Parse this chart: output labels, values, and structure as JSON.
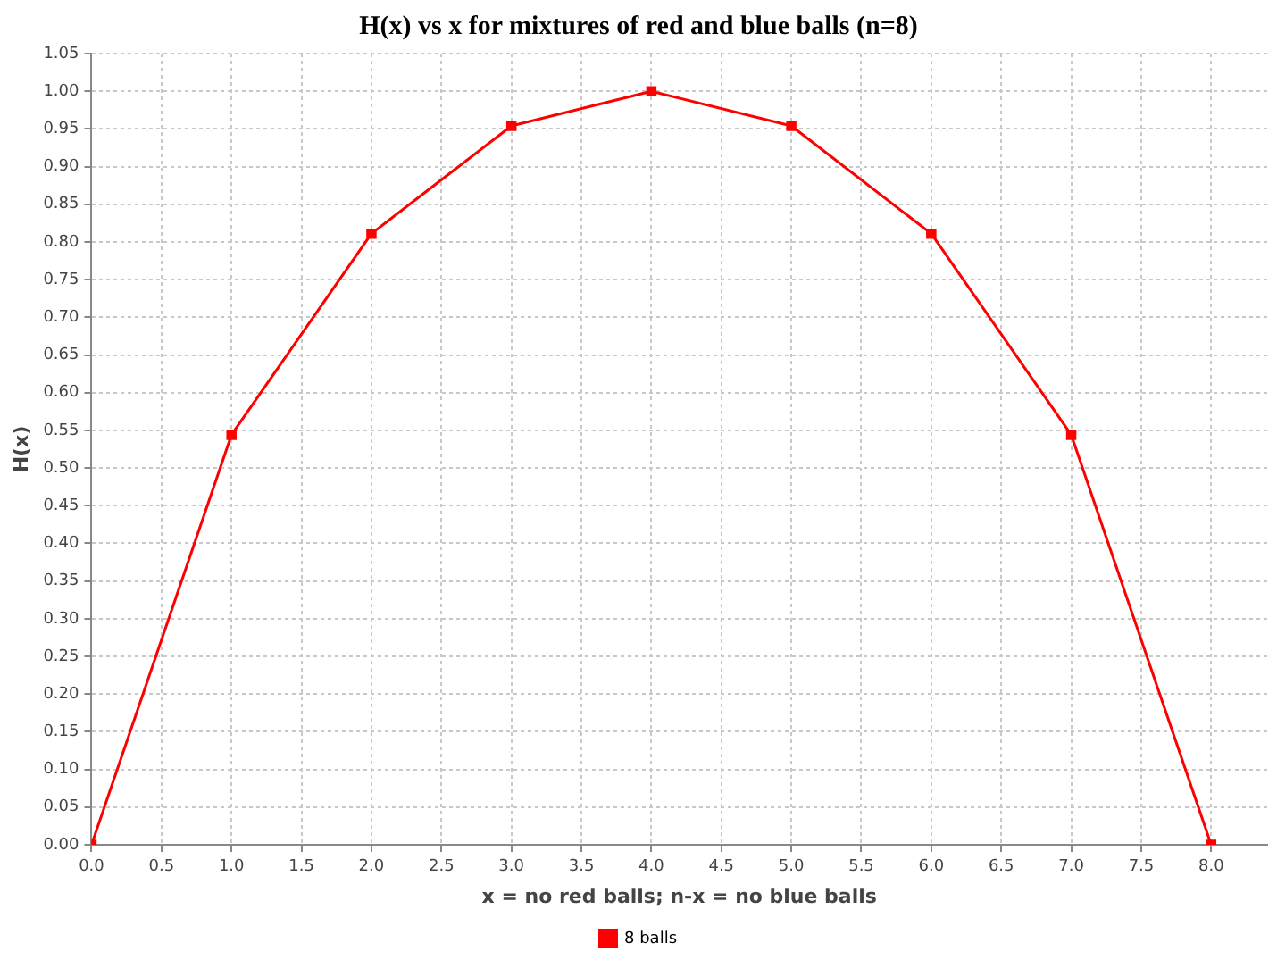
{
  "chart_data": {
    "type": "line",
    "title": "H(x) vs x for mixtures of red and blue balls (n=8)",
    "xlabel": "x = no red balls; n-x = no blue balls",
    "ylabel": "H(x)",
    "x": [
      0,
      1,
      2,
      3,
      4,
      5,
      6,
      7,
      8
    ],
    "series": [
      {
        "name": "8 balls",
        "color": "#ff0000",
        "values": [
          0,
          0.544,
          0.811,
          0.954,
          1.0,
          0.954,
          0.811,
          0.544,
          0
        ]
      }
    ],
    "xlim": [
      0,
      8.4
    ],
    "xticks": [
      {
        "value": 0,
        "label": "0.0"
      },
      {
        "value": 0.5,
        "label": "0.5"
      },
      {
        "value": 1,
        "label": "1.0"
      },
      {
        "value": 1.5,
        "label": "1.5"
      },
      {
        "value": 2,
        "label": "2.0"
      },
      {
        "value": 2.5,
        "label": "2.5"
      },
      {
        "value": 3,
        "label": "3.0"
      },
      {
        "value": 3.5,
        "label": "3.5"
      },
      {
        "value": 4,
        "label": "4.0"
      },
      {
        "value": 4.5,
        "label": "4.5"
      },
      {
        "value": 5,
        "label": "5.0"
      },
      {
        "value": 5.5,
        "label": "5.5"
      },
      {
        "value": 6,
        "label": "6.0"
      },
      {
        "value": 6.5,
        "label": "6.5"
      },
      {
        "value": 7,
        "label": "7.0"
      },
      {
        "value": 7.5,
        "label": "7.5"
      },
      {
        "value": 8,
        "label": "8.0"
      }
    ],
    "ylim": [
      0,
      1.05
    ],
    "yticks": [
      {
        "value": 0,
        "label": "0.00"
      },
      {
        "value": 0.05,
        "label": "0.05"
      },
      {
        "value": 0.1,
        "label": "0.10"
      },
      {
        "value": 0.15,
        "label": "0.15"
      },
      {
        "value": 0.2,
        "label": "0.20"
      },
      {
        "value": 0.25,
        "label": "0.25"
      },
      {
        "value": 0.3,
        "label": "0.30"
      },
      {
        "value": 0.35,
        "label": "0.35"
      },
      {
        "value": 0.4,
        "label": "0.40"
      },
      {
        "value": 0.45,
        "label": "0.45"
      },
      {
        "value": 0.5,
        "label": "0.50"
      },
      {
        "value": 0.55,
        "label": "0.55"
      },
      {
        "value": 0.6,
        "label": "0.60"
      },
      {
        "value": 0.65,
        "label": "0.65"
      },
      {
        "value": 0.7,
        "label": "0.70"
      },
      {
        "value": 0.75,
        "label": "0.75"
      },
      {
        "value": 0.8,
        "label": "0.80"
      },
      {
        "value": 0.85,
        "label": "0.85"
      },
      {
        "value": 0.9,
        "label": "0.90"
      },
      {
        "value": 0.95,
        "label": "0.95"
      },
      {
        "value": 1.0,
        "label": "1.00"
      },
      {
        "value": 1.05,
        "label": "1.05"
      }
    ],
    "grid": true,
    "legend": "bottom",
    "marker": "square",
    "line_style": "solid"
  }
}
